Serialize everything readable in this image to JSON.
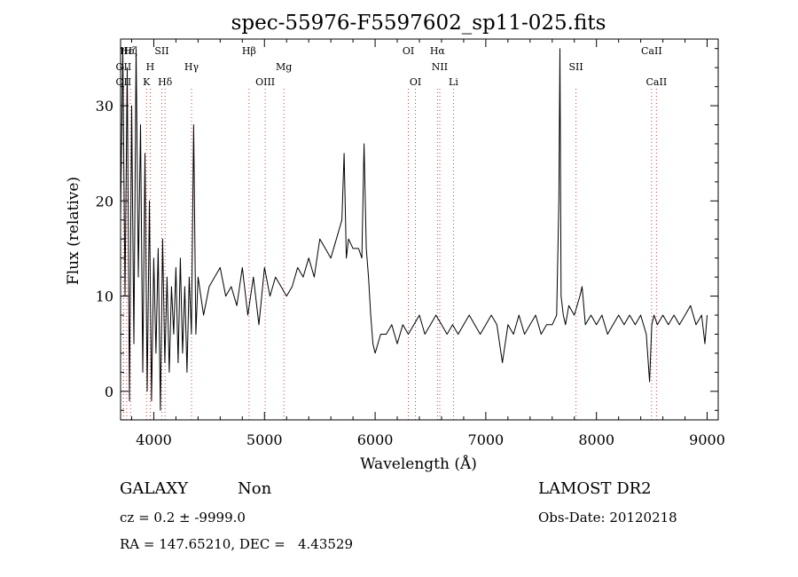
{
  "chart_data": {
    "type": "line",
    "title": "spec-55976-F5597602_sp11-025.fits",
    "xlabel": "Wavelength (Å)",
    "ylabel": "Flux (relative)",
    "xlim": [
      3700,
      9100
    ],
    "ylim": [
      -3,
      37
    ],
    "x_ticks": [
      4000,
      5000,
      6000,
      7000,
      8000,
      9000
    ],
    "y_ticks": [
      0,
      10,
      20,
      30
    ],
    "grid": false,
    "series": [
      {
        "color": "#000000",
        "x": [
          3700,
          3720,
          3740,
          3760,
          3780,
          3800,
          3820,
          3840,
          3860,
          3880,
          3900,
          3920,
          3940,
          3960,
          3980,
          4000,
          4020,
          4040,
          4060,
          4080,
          4100,
          4120,
          4140,
          4160,
          4180,
          4200,
          4220,
          4240,
          4260,
          4280,
          4300,
          4320,
          4340,
          4360,
          4380,
          4400,
          4450,
          4500,
          4550,
          4600,
          4650,
          4700,
          4750,
          4800,
          4850,
          4900,
          4950,
          5000,
          5050,
          5100,
          5150,
          5200,
          5250,
          5300,
          5350,
          5400,
          5450,
          5500,
          5550,
          5600,
          5650,
          5700,
          5720,
          5740,
          5760,
          5800,
          5850,
          5880,
          5900,
          5920,
          5940,
          5960,
          5980,
          6000,
          6050,
          6100,
          6150,
          6200,
          6250,
          6300,
          6350,
          6400,
          6450,
          6500,
          6550,
          6600,
          6650,
          6700,
          6750,
          6800,
          6850,
          6900,
          6950,
          7000,
          7050,
          7100,
          7150,
          7200,
          7250,
          7300,
          7350,
          7400,
          7450,
          7500,
          7550,
          7600,
          7640,
          7660,
          7670,
          7680,
          7700,
          7720,
          7750,
          7800,
          7850,
          7870,
          7900,
          7950,
          8000,
          8050,
          8100,
          8150,
          8200,
          8250,
          8300,
          8350,
          8400,
          8450,
          8480,
          8500,
          8520,
          8550,
          8600,
          8650,
          8700,
          8750,
          8800,
          8850,
          8900,
          8950,
          8980,
          9000
        ],
        "y": [
          18,
          36,
          10,
          34,
          -1,
          30,
          5,
          36,
          12,
          28,
          2,
          25,
          0,
          20,
          -1,
          14,
          4,
          15,
          -2,
          16,
          3,
          12,
          2,
          11,
          6,
          13,
          3,
          14,
          4,
          11,
          2,
          12,
          6,
          28,
          6,
          12,
          8,
          11,
          12,
          13,
          10,
          11,
          9,
          13,
          8,
          12,
          7,
          13,
          10,
          12,
          11,
          10,
          11,
          13,
          12,
          14,
          12,
          16,
          15,
          14,
          16,
          18,
          25,
          14,
          16,
          15,
          15,
          14,
          26,
          15,
          12,
          8,
          5,
          4,
          6,
          6,
          7,
          5,
          7,
          6,
          7,
          8,
          6,
          7,
          8,
          7,
          6,
          7,
          6,
          7,
          8,
          7,
          6,
          7,
          8,
          7,
          3,
          7,
          6,
          8,
          6,
          7,
          8,
          6,
          7,
          7,
          8,
          20,
          36,
          10,
          8,
          7,
          9,
          8,
          10,
          11,
          7,
          8,
          7,
          8,
          6,
          7,
          8,
          7,
          8,
          7,
          8,
          6,
          1,
          7,
          8,
          7,
          8,
          7,
          8,
          7,
          8,
          9,
          7,
          8,
          5,
          8
        ]
      }
    ],
    "annotations": [
      {
        "label": "OII",
        "wavelength": 3727,
        "row": 2
      },
      {
        "label": "OII",
        "wavelength": 3727,
        "row": 4
      },
      {
        "label": "Hε",
        "wavelength": 3755,
        "row": 1
      },
      {
        "label": "Hζ",
        "wavelength": 3790,
        "row": 1
      },
      {
        "label": "H",
        "wavelength": 3968,
        "row": 2
      },
      {
        "label": "K",
        "wavelength": 3934,
        "row": 4
      },
      {
        "label": "SII",
        "wavelength": 4072,
        "row": 1
      },
      {
        "label": "Hδ",
        "wavelength": 4102,
        "row": 4
      },
      {
        "label": "Hγ",
        "wavelength": 4341,
        "row": 2
      },
      {
        "label": "Hβ",
        "wavelength": 4861,
        "row": 1
      },
      {
        "label": "OIII",
        "wavelength": 5007,
        "row": 4
      },
      {
        "label": "Mg",
        "wavelength": 5175,
        "row": 2
      },
      {
        "label": "OI",
        "wavelength": 6300,
        "row": 1
      },
      {
        "label": "OI",
        "wavelength": 6364,
        "row": 4
      },
      {
        "label": "Hα",
        "wavelength": 6563,
        "row": 1
      },
      {
        "label": "NII",
        "wavelength": 6584,
        "row": 2
      },
      {
        "label": "Li",
        "wavelength": 6708,
        "row": 4
      },
      {
        "label": "SII",
        "wavelength": 7815,
        "row": 2
      },
      {
        "label": "CaII",
        "wavelength": 8498,
        "row": 1
      },
      {
        "label": "CaII",
        "wavelength": 8542,
        "row": 4
      }
    ]
  },
  "info": {
    "class": "GALAXY",
    "subclass": "Non",
    "survey": "LAMOST DR2",
    "cz": "cz = 0.2 ± -9999.0",
    "obs_date": "Obs-Date: 20120218",
    "radec": "RA = 147.65210, DEC =   4.43529"
  }
}
